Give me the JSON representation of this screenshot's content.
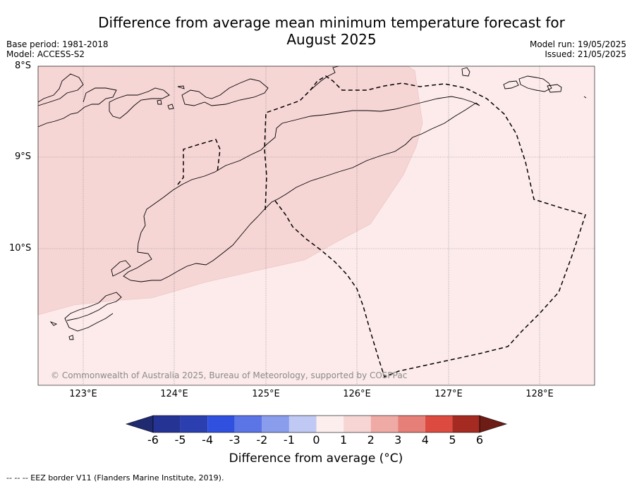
{
  "title": "Difference from average mean minimum temperature forecast for August 2025",
  "title_line1": "Difference from average mean minimum temperature forecast for",
  "title_line2": "August 2025",
  "base_period": "Base period: 1981-2018",
  "model": "Model: ACCESS-S2",
  "model_run": "Model run: 19/05/2025",
  "issued": "Issued: 21/05/2025",
  "lat_labels": [
    "8°S",
    "9°S",
    "10°S"
  ],
  "lon_labels": [
    "123°E",
    "124°E",
    "125°E",
    "126°E",
    "127°E",
    "128°E"
  ],
  "copyright": "© Commonwealth of Australia 2025, Bureau of Meteorology, supported by COSPPac",
  "colorbar": {
    "title": "Difference from average (°C)",
    "ticks": [
      "-6",
      "-5",
      "-4",
      "-3",
      "-2",
      "-1",
      "0",
      "1",
      "2",
      "3",
      "4",
      "5",
      "6"
    ],
    "colors": [
      "#253494",
      "#2b3fb0",
      "#3050e0",
      "#5b74e6",
      "#8a9ded",
      "#c0c8f4",
      "#ecefff",
      "#fdeeee",
      "#f7d5d5",
      "#efaaa6",
      "#e57f78",
      "#dd4a40",
      "#a52a22"
    ],
    "under_color": "#1f2a70",
    "over_color": "#6e1c16"
  },
  "map_data": {
    "extent_lon": [
      122.5,
      128.6
    ],
    "extent_lat": [
      -11.5,
      -8.0
    ],
    "background_anomaly_class": "0 to 1",
    "background_color": "#fcebea",
    "northwest_anomaly_class": "1 to 2",
    "northwest_color": "#f6d5d5",
    "eez_border": "dashed"
  },
  "footnote": "--  --  -- EEZ border V11 (Flanders Marine Institute, 2019)."
}
